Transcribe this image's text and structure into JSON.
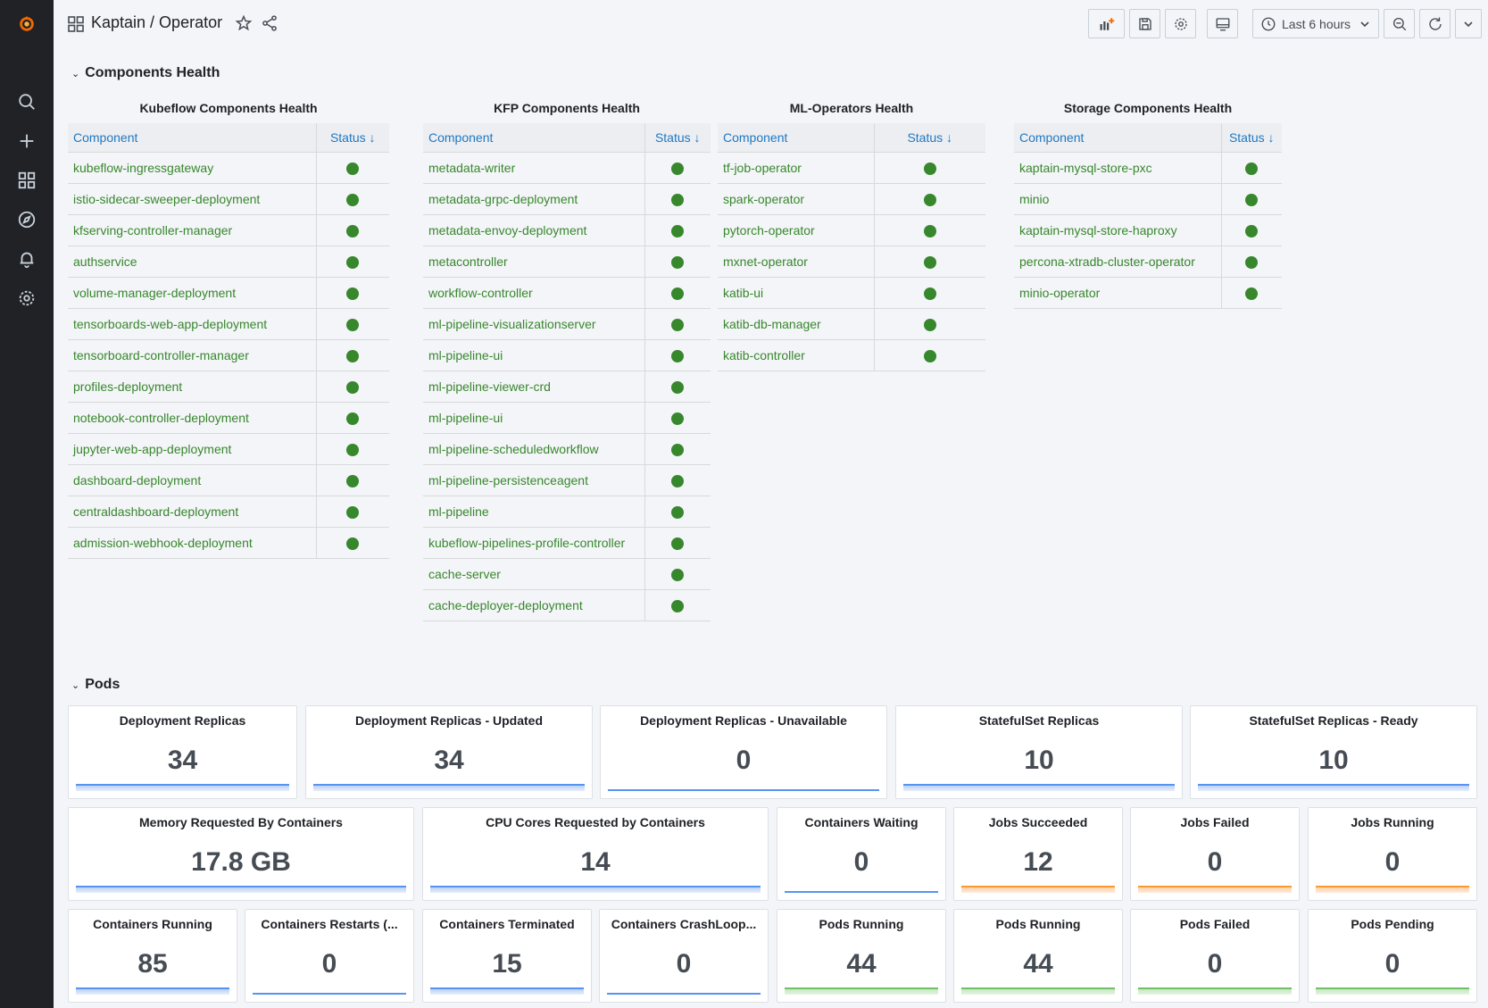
{
  "breadcrumb": "Kaptain / Operator",
  "time_picker": {
    "label": "Last 6 hours"
  },
  "colors": {
    "ok": "#37872d",
    "link": "#1f78c1",
    "sidebar": "#202226",
    "spark_blue": "#5794f2",
    "spark_orange": "#ff9830",
    "spark_green": "#73bf69"
  },
  "sidebar": {
    "items": [
      {
        "icon": "grafana-logo-icon"
      },
      {
        "icon": "search-icon"
      },
      {
        "icon": "plus-icon"
      },
      {
        "icon": "dashboards-icon"
      },
      {
        "icon": "explore-icon"
      },
      {
        "icon": "alerting-bell-icon"
      },
      {
        "icon": "configuration-gear-icon"
      }
    ]
  },
  "rows": {
    "components_health": "Components Health",
    "pods": "Pods"
  },
  "tables": [
    {
      "title": "Kubeflow Components Health",
      "col_component": "Component",
      "col_status": "Status ↓",
      "rows": [
        "kubeflow-ingressgateway",
        "istio-sidecar-sweeper-deployment",
        "kfserving-controller-manager",
        "authservice",
        "volume-manager-deployment",
        "tensorboards-web-app-deployment",
        "tensorboard-controller-manager",
        "profiles-deployment",
        "notebook-controller-deployment",
        "jupyter-web-app-deployment",
        "dashboard-deployment",
        "centraldashboard-deployment",
        "admission-webhook-deployment"
      ]
    },
    {
      "title": "KFP Components Health",
      "col_component": "Component",
      "col_status": "Status ↓",
      "rows": [
        "metadata-writer",
        "metadata-grpc-deployment",
        "metadata-envoy-deployment",
        "metacontroller",
        "workflow-controller",
        "ml-pipeline-visualizationserver",
        "ml-pipeline-ui",
        "ml-pipeline-viewer-crd",
        "ml-pipeline-ui",
        "ml-pipeline-scheduledworkflow",
        "ml-pipeline-persistenceagent",
        "ml-pipeline",
        "kubeflow-pipelines-profile-controller",
        "cache-server",
        "cache-deployer-deployment"
      ]
    },
    {
      "title": "ML-Operators Health",
      "col_component": "Component",
      "col_status": "Status ↓",
      "rows": [
        "tf-job-operator",
        "spark-operator",
        "pytorch-operator",
        "mxnet-operator",
        "katib-ui",
        "katib-db-manager",
        "katib-controller"
      ]
    },
    {
      "title": "Storage Components Health",
      "col_component": "Component",
      "col_status": "Status ↓",
      "rows": [
        "kaptain-mysql-store-pxc",
        "minio",
        "kaptain-mysql-store-haproxy",
        "percona-xtradb-cluster-operator",
        "minio-operator"
      ]
    }
  ],
  "stats": [
    {
      "title": "Deployment Replicas",
      "value": "34",
      "spark": "blue"
    },
    {
      "title": "Deployment Replicas - Updated",
      "value": "34",
      "spark": "blue"
    },
    {
      "title": "Deployment Replicas - Unavailable",
      "value": "0",
      "spark": "blueflat"
    },
    {
      "title": "StatefulSet Replicas",
      "value": "10",
      "spark": "blue"
    },
    {
      "title": "StatefulSet Replicas - Ready",
      "value": "10",
      "spark": "blue"
    },
    {
      "title": "Memory Requested By Containers",
      "value": "17.8 GB",
      "spark": "blue"
    },
    {
      "title": "CPU Cores Requested by Containers",
      "value": "14",
      "spark": "blue"
    },
    {
      "title": "Containers Waiting",
      "value": "0",
      "spark": "blueflat"
    },
    {
      "title": "Jobs Succeeded",
      "value": "12",
      "spark": "orange"
    },
    {
      "title": "Jobs Failed",
      "value": "0",
      "spark": "orange"
    },
    {
      "title": "Jobs Running",
      "value": "0",
      "spark": "orange"
    },
    {
      "title": "Containers Running",
      "value": "85",
      "spark": "blue"
    },
    {
      "title": "Containers Restarts (...",
      "value": "0",
      "spark": "blueflat"
    },
    {
      "title": "Containers Terminated",
      "value": "15",
      "spark": "blue"
    },
    {
      "title": "Containers CrashLoop...",
      "value": "0",
      "spark": "blueflat"
    },
    {
      "title": "Pods Running",
      "value": "44",
      "spark": "green"
    },
    {
      "title": "Pods Running",
      "value": "44",
      "spark": "green"
    },
    {
      "title": "Pods Failed",
      "value": "0",
      "spark": "green"
    },
    {
      "title": "Pods Pending",
      "value": "0",
      "spark": "green"
    }
  ]
}
